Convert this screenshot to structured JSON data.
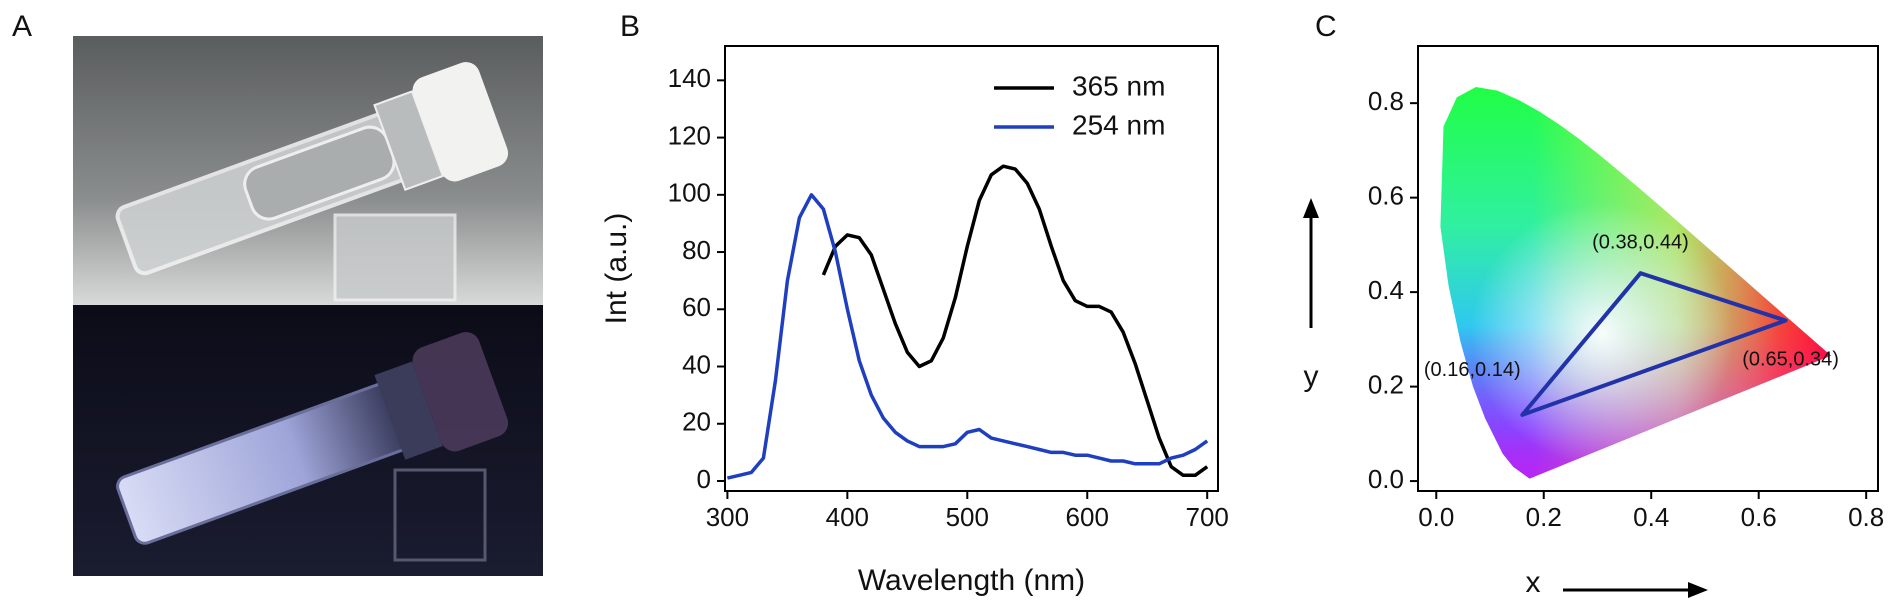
{
  "photo_panel": {
    "label": "A"
  },
  "chart_data": [
    {
      "type": "line",
      "panel_label": "B",
      "x_label": "Wavelength (nm)",
      "y_label": "Int (a.u.)",
      "x": [
        300,
        310,
        320,
        330,
        340,
        350,
        360,
        370,
        380,
        390,
        400,
        410,
        420,
        430,
        440,
        450,
        460,
        470,
        480,
        490,
        500,
        510,
        520,
        530,
        540,
        550,
        560,
        570,
        580,
        590,
        600,
        610,
        620,
        630,
        640,
        650,
        660,
        670,
        680,
        690,
        700
      ],
      "series": [
        {
          "name": "365 nm",
          "color": "#000000",
          "values": [
            null,
            null,
            null,
            null,
            null,
            null,
            null,
            null,
            72,
            82,
            86,
            85,
            79,
            67,
            55,
            45,
            40,
            42,
            50,
            64,
            82,
            98,
            107,
            110,
            109,
            104,
            95,
            82,
            70,
            63,
            61,
            61,
            59,
            52,
            41,
            28,
            15,
            5,
            2,
            2,
            5
          ]
        },
        {
          "name": "254 nm",
          "color": "#1f3fbf",
          "values": [
            1,
            2,
            3,
            8,
            35,
            70,
            92,
            100,
            95,
            80,
            60,
            42,
            30,
            22,
            17,
            14,
            12,
            12,
            12,
            13,
            17,
            18,
            15,
            14,
            13,
            12,
            11,
            10,
            10,
            9,
            9,
            8,
            7,
            7,
            6,
            6,
            6,
            8,
            9,
            11,
            14
          ]
        }
      ],
      "xlim": [
        298,
        709
      ],
      "ylim": [
        -3.5,
        152
      ],
      "xticks": [
        300,
        400,
        500,
        600,
        700
      ],
      "yticks": [
        0,
        20,
        40,
        60,
        80,
        100,
        120,
        140
      ],
      "legend": "upper right"
    },
    {
      "type": "scatter",
      "panel_label": "C",
      "x_label": "x",
      "y_label": "y",
      "series": [
        {
          "color": "#2233aa",
          "x": [
            0.16,
            0.38,
            0.65
          ],
          "values": [
            0.14,
            0.44,
            0.34
          ],
          "value_labels": [
            "(0.16,0.14)",
            "(0.38,0.44)",
            "(0.65,0.34)"
          ]
        }
      ],
      "xlim": [
        -0.034,
        0.822
      ],
      "ylim": [
        -0.021,
        0.921
      ],
      "xticks": [
        {
          "value": 0,
          "label": "0.0"
        },
        0.2,
        0.4,
        0.6,
        0.8
      ],
      "yticks": [
        {
          "value": 0,
          "label": "0.0"
        },
        0.2,
        0.4,
        0.6,
        0.8
      ]
    }
  ]
}
